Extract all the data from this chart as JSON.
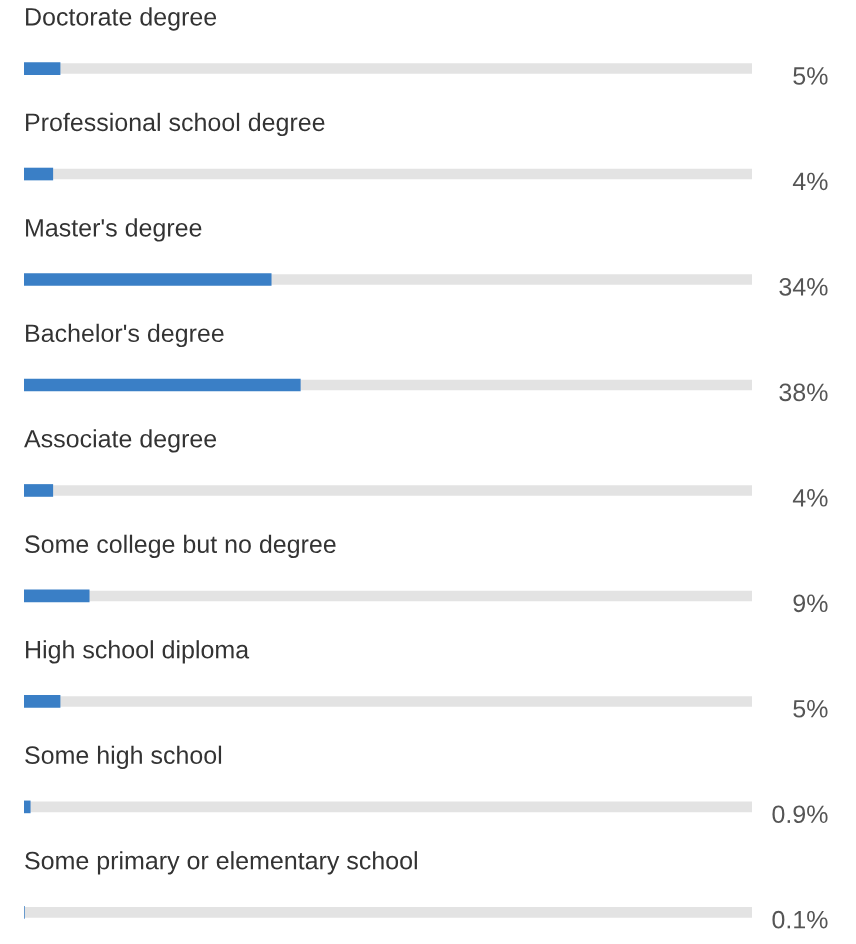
{
  "chart_data": {
    "type": "bar",
    "orientation": "horizontal",
    "categories": [
      "Doctorate degree",
      "Professional school degree",
      "Master's degree",
      "Bachelor's degree",
      "Associate degree",
      "Some college but no degree",
      "High school diploma",
      "Some high school",
      "Some primary or elementary school"
    ],
    "values": [
      5,
      4,
      34,
      38,
      4,
      9,
      5,
      0.9,
      0.1
    ],
    "value_labels": [
      "5%",
      "4%",
      "34%",
      "38%",
      "4%",
      "9%",
      "5%",
      "0.9%",
      "0.1%"
    ],
    "color": "#3a7fc6",
    "xlim": [
      0,
      100
    ]
  }
}
